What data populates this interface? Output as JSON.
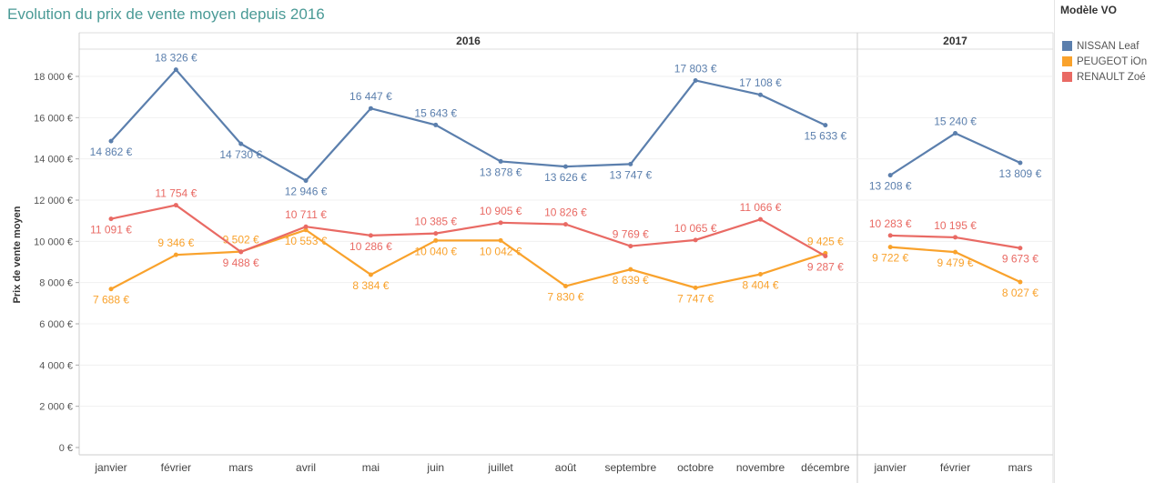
{
  "chart_data": {
    "type": "line",
    "title": "Evolution du prix de vente moyen depuis 2016",
    "ylabel": "Prix de vente moyen",
    "xlabel": "",
    "ylim": [
      0,
      19000
    ],
    "yticks": [
      0,
      2000,
      4000,
      6000,
      8000,
      10000,
      12000,
      14000,
      16000,
      18000
    ],
    "ytick_labels": [
      "0 €",
      "2 000 €",
      "4 000 €",
      "6 000 €",
      "8 000 €",
      "10 000 €",
      "12 000 €",
      "14 000 €",
      "16 000 €",
      "18 000 €"
    ],
    "groups": [
      {
        "label": "2016",
        "categories": [
          "janvier",
          "février",
          "mars",
          "avril",
          "mai",
          "juin",
          "juillet",
          "août",
          "septembre",
          "octobre",
          "novembre",
          "décembre"
        ]
      },
      {
        "label": "2017",
        "categories": [
          "janvier",
          "février",
          "mars"
        ]
      }
    ],
    "legend_title": "Modèle VO",
    "legend_position": "right",
    "series": [
      {
        "name": "NISSAN Leaf",
        "color": "#5b7fad",
        "values": [
          14862,
          18326,
          14730,
          12946,
          16447,
          15643,
          13878,
          13626,
          13747,
          17803,
          17108,
          15633,
          13208,
          15240,
          13809
        ],
        "labels": [
          "14 862 €",
          "18 326 €",
          "14 730 €",
          "12 946 €",
          "16 447 €",
          "15 643 €",
          "13 878 €",
          "13 626 €",
          "13 747 €",
          "17 803 €",
          "17 108 €",
          "15 633 €",
          "13 208 €",
          "15 240 €",
          "13 809 €"
        ]
      },
      {
        "name": "PEUGEOT iOn",
        "color": "#f9a22c",
        "values": [
          7688,
          9346,
          9502,
          10553,
          8384,
          10040,
          10042,
          7830,
          8639,
          7747,
          8404,
          9425,
          9722,
          9479,
          8027
        ],
        "labels": [
          "7 688 €",
          "9 346 €",
          "9 502 €",
          "10 553 €",
          "8 384 €",
          "10 040 €",
          "10 042 €",
          "7 830 €",
          "8 639 €",
          "7 747 €",
          "8 404 €",
          "9 425 €",
          "9 722 €",
          "9 479 €",
          "8 027 €"
        ]
      },
      {
        "name": "RENAULT Zoé",
        "color": "#e96a64",
        "values": [
          11091,
          11754,
          9488,
          10711,
          10286,
          10385,
          10905,
          10826,
          9769,
          10065,
          11066,
          9287,
          10283,
          10195,
          9673
        ],
        "labels": [
          "11 091 €",
          "11 754 €",
          "9 488 €",
          "10 711 €",
          "10 286 €",
          "10 385 €",
          "10 905 €",
          "10 826 €",
          "9 769 €",
          "10 065 €",
          "11 066 €",
          "9 287 €",
          "10 283 €",
          "10 195 €",
          "9 673 €"
        ]
      }
    ]
  }
}
